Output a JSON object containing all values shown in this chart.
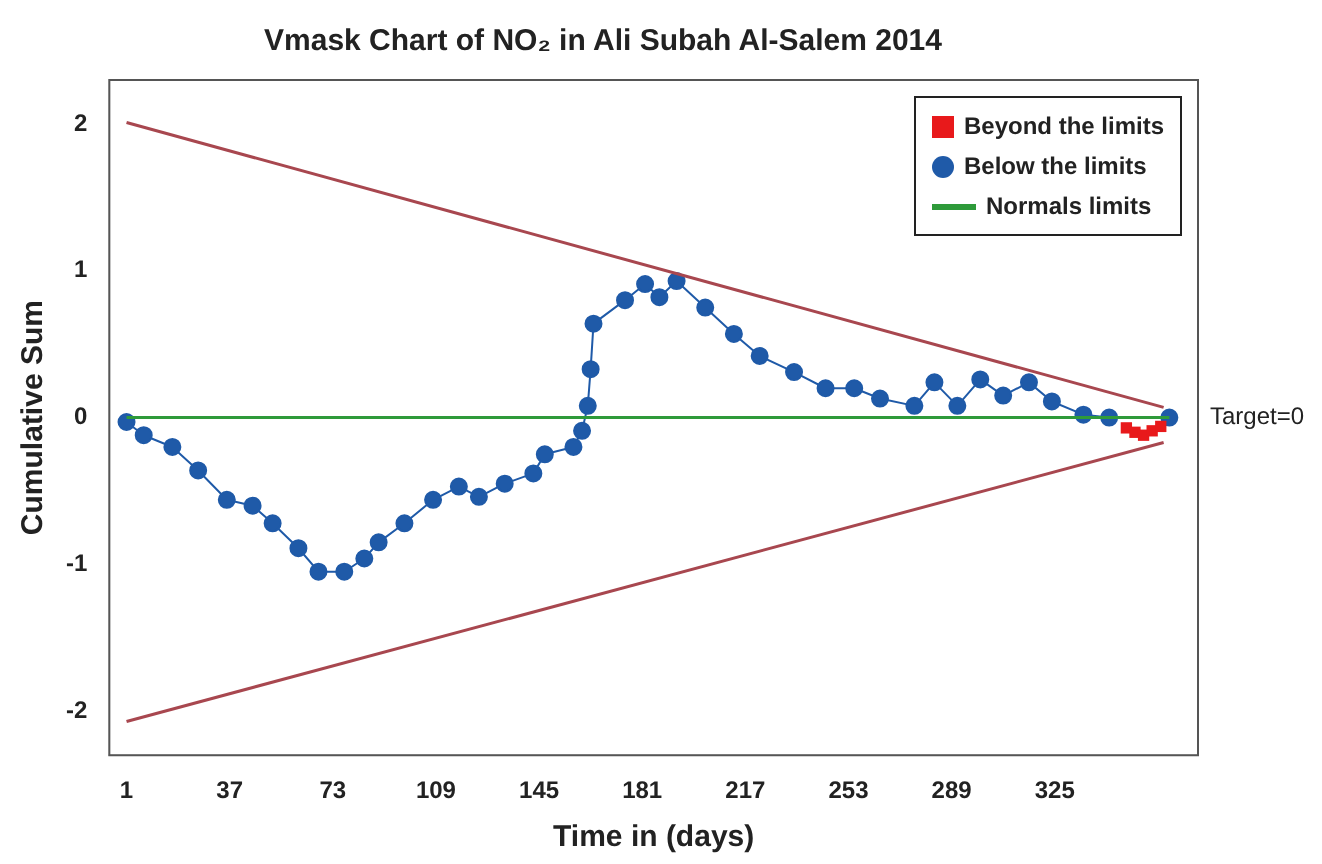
{
  "chart_data": {
    "type": "line",
    "title": "Vmask Chart of NO₂ in Ali Subah Al-Salem 2014",
    "xlabel": "Time in (days)",
    "ylabel": "Cumulative Sum",
    "xlim": [
      -5,
      375
    ],
    "xticks": [
      1,
      37,
      73,
      109,
      145,
      181,
      217,
      253,
      289,
      325
    ],
    "ylim": [
      -2.3,
      2.3
    ],
    "yticks": [
      -2,
      -1,
      0,
      1,
      2
    ],
    "grid": false,
    "legend": "top right",
    "annotations": [
      "Target=0"
    ],
    "series": [
      {
        "color": "#a8474f",
        "marker": "none",
        "x": [
          1,
          363
        ],
        "values": [
          2.01,
          0.07
        ]
      },
      {
        "color": "#a8474f",
        "marker": "none",
        "x": [
          1,
          363
        ],
        "values": [
          -2.07,
          -0.17
        ]
      },
      {
        "name": "Normals limits",
        "color": "#2e9a3a",
        "marker": "none",
        "x": [
          1,
          365
        ],
        "values": [
          0,
          0
        ]
      },
      {
        "name": "Below the limits",
        "color": "#1f5aa8",
        "marker": "circle",
        "x": [
          1,
          7,
          17,
          26,
          36,
          45,
          52,
          61,
          68,
          77,
          84,
          89,
          98,
          108,
          117,
          124,
          133,
          143,
          147,
          157,
          160,
          162,
          163,
          164,
          175,
          182,
          187,
          193,
          203,
          213,
          222,
          234,
          245,
          255,
          264,
          276,
          283,
          291,
          299,
          307,
          316,
          324,
          335,
          344,
          365
        ],
        "values": [
          -0.03,
          -0.12,
          -0.2,
          -0.36,
          -0.56,
          -0.6,
          -0.72,
          -0.89,
          -1.05,
          -1.05,
          -0.96,
          -0.85,
          -0.72,
          -0.56,
          -0.47,
          -0.54,
          -0.45,
          -0.38,
          -0.25,
          -0.2,
          -0.09,
          0.08,
          0.33,
          0.64,
          0.8,
          0.91,
          0.82,
          0.93,
          0.75,
          0.57,
          0.42,
          0.31,
          0.2,
          0.2,
          0.13,
          0.08,
          0.24,
          0.08,
          0.26,
          0.15,
          0.24,
          0.11,
          0.02,
          0.0,
          0.0
        ]
      },
      {
        "type": "scatter",
        "name": "Beyond the limits",
        "color": "#e8191b",
        "marker": "square",
        "x": [
          350,
          353,
          356,
          359,
          362
        ],
        "values": [
          -0.07,
          -0.1,
          -0.12,
          -0.09,
          -0.06
        ]
      }
    ]
  }
}
